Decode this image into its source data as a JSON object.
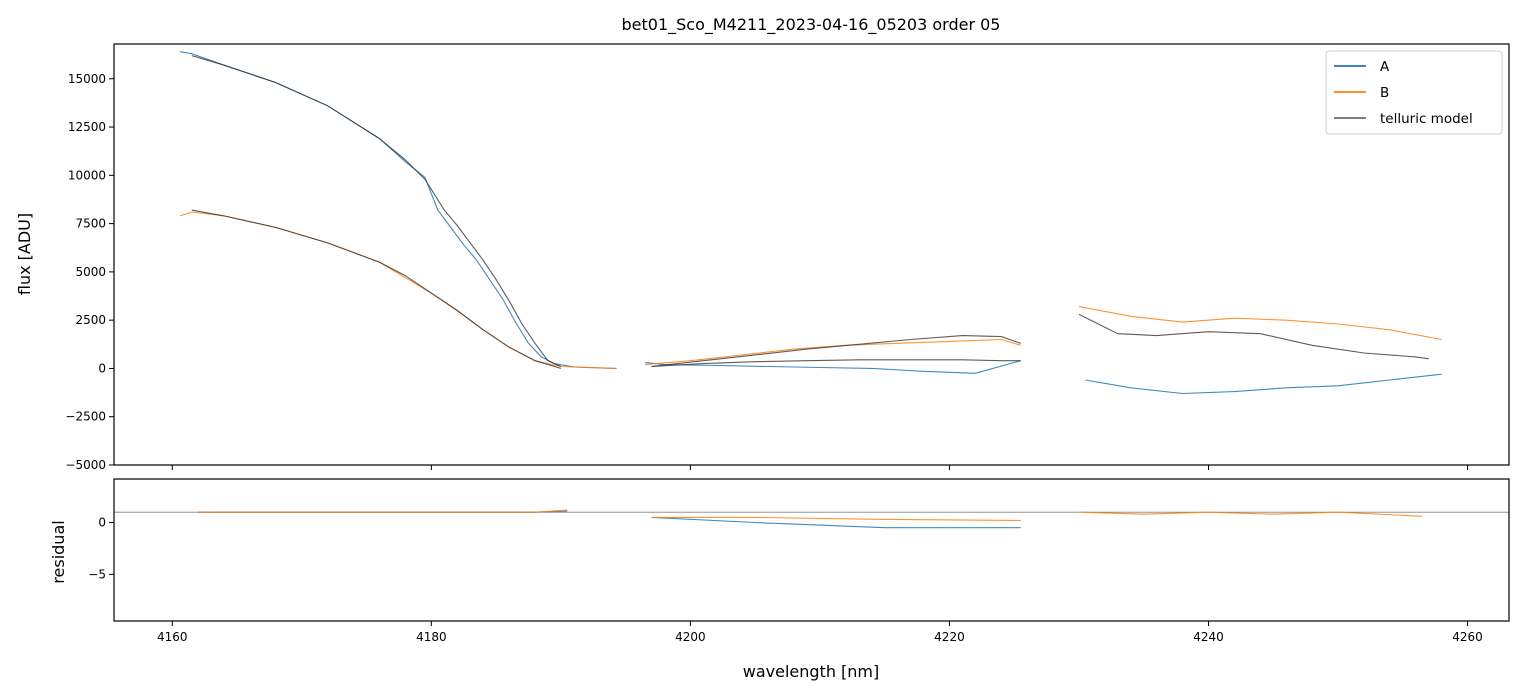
{
  "chart_data": [
    {
      "panel": "top",
      "type": "line",
      "title": "bet01_Sco_M4211_2023-04-16_05203  order 05",
      "xlabel": "",
      "ylabel": "flux [ADU]",
      "xlim": [
        4155.5,
        4263.2
      ],
      "ylim": [
        -5000,
        16800
      ],
      "xticks": [
        4160,
        4180,
        4200,
        4220,
        4240,
        4260
      ],
      "yticks": [
        -5000,
        -2500,
        0,
        2500,
        5000,
        7500,
        10000,
        12500,
        15000
      ],
      "ytick_labels": [
        "−5000",
        "−2500",
        "0",
        "2500",
        "5000",
        "7500",
        "10000",
        "12500",
        "15000"
      ],
      "legend_position": "top-right",
      "legend": [
        "A",
        "B",
        "telluric model"
      ],
      "series": [
        {
          "name": "A",
          "color": "#1f77b4",
          "segments": [
            {
              "x": [
                4160.6,
                4161.5,
                4164,
                4168,
                4172,
                4176,
                4178,
                4179.5,
                4180.5,
                4181.5,
                4182.5,
                4183.5,
                4184.5,
                4185.5,
                4186.5,
                4187.5,
                4188.5,
                4189.5,
                4191,
                4193,
                4194.3
              ],
              "y": [
                16400,
                16300,
                15700,
                14800,
                13600,
                11900,
                10700,
                9900,
                8200,
                7300,
                6400,
                5600,
                4600,
                3600,
                2400,
                1300,
                600,
                250,
                80,
                30,
                0
              ]
            },
            {
              "x": [
                4196.5,
                4198,
                4202,
                4206,
                4210,
                4214,
                4218,
                4222,
                4225.5
              ],
              "y": [
                300,
                200,
                150,
                100,
                50,
                0,
                -150,
                -250,
                400
              ]
            },
            {
              "x": [
                4230.5,
                4234,
                4238,
                4242,
                4246,
                4250,
                4254,
                4258
              ],
              "y": [
                -600,
                -1000,
                -1300,
                -1200,
                -1000,
                -900,
                -600,
                -300
              ]
            }
          ]
        },
        {
          "name": "B",
          "color": "#ff7f0e",
          "segments": [
            {
              "x": [
                4160.6,
                4161.5,
                4164,
                4168,
                4172,
                4176,
                4178,
                4180,
                4182,
                4184,
                4186,
                4188,
                4190,
                4194.3
              ],
              "y": [
                7900,
                8100,
                7900,
                7300,
                6500,
                5500,
                4700,
                3900,
                3000,
                2000,
                1100,
                400,
                100,
                0
              ]
            },
            {
              "x": [
                4196.5,
                4200,
                4204,
                4208,
                4212,
                4216,
                4220,
                4224,
                4225.5
              ],
              "y": [
                200,
                400,
                700,
                1000,
                1200,
                1300,
                1400,
                1500,
                1200
              ]
            },
            {
              "x": [
                4230,
                4234,
                4238,
                4242,
                4246,
                4250,
                4254,
                4258
              ],
              "y": [
                3200,
                2700,
                2400,
                2600,
                2500,
                2300,
                2000,
                1500
              ]
            }
          ]
        }
      ],
      "telluric_model": [
        {
          "x": [
            4161.5,
            4164,
            4168,
            4172,
            4176,
            4178,
            4179.5,
            4181,
            4182,
            4183,
            4184,
            4185,
            4186,
            4187,
            4188,
            4189,
            4190
          ],
          "y": [
            16200,
            15700,
            14800,
            13600,
            11900,
            10800,
            9800,
            8200,
            7400,
            6500,
            5600,
            4600,
            3500,
            2300,
            1300,
            400,
            100
          ]
        },
        {
          "x": [
            4161.5,
            4164,
            4168,
            4172,
            4176,
            4178,
            4180,
            4182,
            4184,
            4186,
            4188,
            4190
          ],
          "y": [
            8200,
            7900,
            7300,
            6500,
            5500,
            4800,
            3900,
            3000,
            2000,
            1100,
            400,
            0
          ]
        },
        {
          "x": [
            4197,
            4201,
            4205,
            4209,
            4213,
            4217,
            4221,
            4224,
            4225.5
          ],
          "y": [
            100,
            400,
            700,
            1000,
            1250,
            1500,
            1700,
            1650,
            1300
          ]
        },
        {
          "x": [
            4197,
            4201,
            4205,
            4209,
            4213,
            4217,
            4221,
            4224,
            4225.5
          ],
          "y": [
            100,
            250,
            350,
            400,
            450,
            450,
            450,
            400,
            400
          ]
        },
        {
          "x": [
            4230,
            4231.5,
            4233,
            4236,
            4240,
            4244,
            4248,
            4252,
            4256,
            4257
          ],
          "y": [
            2800,
            2300,
            1800,
            1700,
            1900,
            1800,
            1200,
            800,
            600,
            500
          ]
        }
      ]
    },
    {
      "panel": "bottom",
      "type": "line",
      "title": "",
      "xlabel": "wavelength [nm]",
      "ylabel": "residual",
      "xlim": [
        4155.5,
        4263.2
      ],
      "ylim": [
        -9.5,
        4.2
      ],
      "xticks": [
        4160,
        4180,
        4200,
        4220,
        4240,
        4260
      ],
      "yticks": [
        -5,
        0
      ],
      "ytick_labels": [
        "−5",
        "0"
      ],
      "reference_line": 1,
      "series": [
        {
          "name": "A",
          "color": "#1f77b4",
          "segments": [
            {
              "x": [
                4162,
                4170,
                4180,
                4188,
                4190.5
              ],
              "y": [
                1,
                1,
                1,
                1,
                1.1
              ]
            },
            {
              "x": [
                4197,
                4205,
                4215,
                4225.5
              ],
              "y": [
                0.5,
                0,
                -0.5,
                -0.5
              ]
            }
          ]
        },
        {
          "name": "B",
          "color": "#ff7f0e",
          "segments": [
            {
              "x": [
                4162,
                4170,
                4180,
                4188,
                4190.5
              ],
              "y": [
                1,
                1,
                1,
                1,
                1.2
              ]
            },
            {
              "x": [
                4197,
                4205,
                4215,
                4225.5
              ],
              "y": [
                0.5,
                0.5,
                0.3,
                0.2
              ]
            },
            {
              "x": [
                4230,
                4235,
                4240,
                4245,
                4250,
                4256.5
              ],
              "y": [
                1,
                0.8,
                1,
                0.8,
                1,
                0.6
              ]
            }
          ]
        }
      ]
    }
  ]
}
